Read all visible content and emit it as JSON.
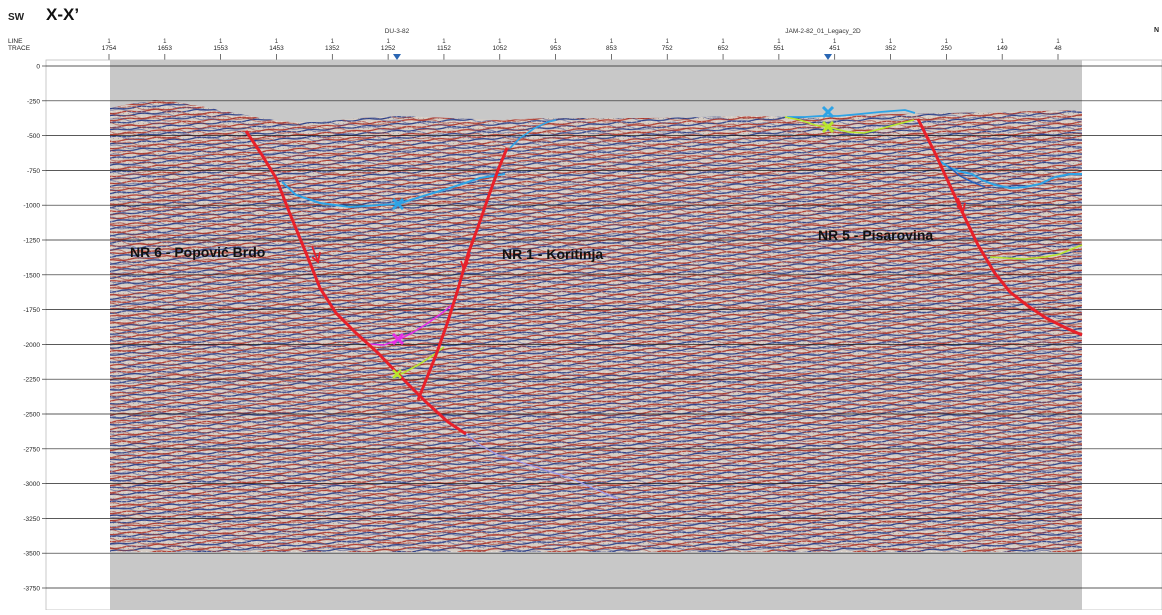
{
  "header": {
    "sw_label": "SW",
    "section_title": "X-X’",
    "line_label": "LINE",
    "trace_label": "TRACE",
    "ne_label": "N",
    "line_name_1": "DU-3-82",
    "line_name_2": "JAM-2-82_01_Legacy_2D",
    "line_number": "1"
  },
  "traces": [
    "1754",
    "1653",
    "1553",
    "1453",
    "1352",
    "1252",
    "1152",
    "1052",
    "953",
    "853",
    "752",
    "652",
    "551",
    "451",
    "352",
    "250",
    "149",
    "48"
  ],
  "depth_labels": [
    "0",
    "-250",
    "-500",
    "-750",
    "-1000",
    "-1250",
    "-1500",
    "-1750",
    "-2000",
    "-2250",
    "-2500",
    "-2750",
    "-3000",
    "-3250",
    "-3500",
    "-3750"
  ],
  "faults": [
    {
      "label": "NR 6 - Popović Brdo",
      "color": "#e8202a"
    },
    {
      "label": "NR 1 - Koritinja",
      "color": "#e8202a"
    },
    {
      "label": "NR 5 - Pisarovina",
      "color": "#e8202a"
    }
  ],
  "horizon_colors": {
    "blue": "#2ea3e6",
    "yellow_green": "#b8e62e",
    "magenta": "#e62ee6",
    "lavender": "#9f98ea"
  },
  "colors": {
    "seismic_red": "#b33a2e",
    "seismic_blue": "#2b3f8a",
    "seismic_base": "#cfc6bd",
    "gray_pad": "#c8c8c8"
  }
}
